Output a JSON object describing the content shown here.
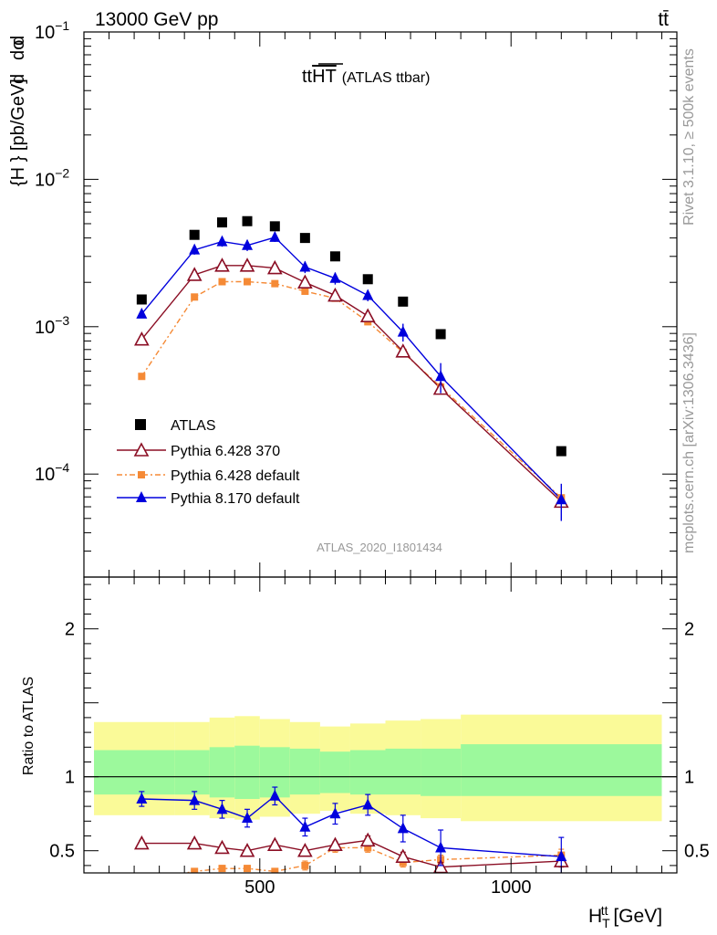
{
  "header": {
    "energy_label": "13000 GeV pp",
    "process_label": "tt̄"
  },
  "side_labels": {
    "rivet": "Rivet 3.1.10, ≥ 500k events",
    "mcplots": "mcplots.cern.ch [arXiv:1306.3436]"
  },
  "plot_title": {
    "main": "tt",
    "overline": "HT",
    "sub": "(ATLAS ttbar)"
  },
  "analysis_id": "ATLAS_2020_I1801434",
  "legend": {
    "data": "ATLAS",
    "p6_370": "Pythia 6.428 370",
    "p6_default": "Pythia 6.428 default",
    "p8_default": "Pythia 8.170 default"
  },
  "colors": {
    "data": "#000000",
    "p6_370": "#8b0e24",
    "p6_default": "#f58a36",
    "p8_default": "#0000dd",
    "band_inner": "#9cf99c",
    "band_outer": "#fafa98"
  },
  "chart_data": [
    {
      "type": "scatter",
      "title": "",
      "ylabel": "dσ^{fid} / d{H_T^{tt}} [pb/GeV]",
      "yscale": "log",
      "xlim": [
        150,
        1330
      ],
      "ylim": [
        2e-05,
        0.1
      ],
      "y_ticks": [
        {
          "v": 0.1,
          "m": "10",
          "e": "−1"
        },
        {
          "v": 0.01,
          "m": "10",
          "e": "−2"
        },
        {
          "v": 0.001,
          "m": "10",
          "e": "−3"
        },
        {
          "v": 0.0001,
          "m": "10",
          "e": "−4"
        }
      ],
      "x": [
        265,
        370,
        425,
        475,
        530,
        590,
        650,
        715,
        785,
        860,
        1100
      ],
      "series": [
        {
          "name": "ATLAS",
          "values": [
            0.00153,
            0.0042,
            0.0051,
            0.0052,
            0.0048,
            0.004,
            0.003,
            0.0021,
            0.00148,
            0.00089,
            0.000143
          ]
        },
        {
          "name": "Pythia 6.428 370",
          "values": [
            0.00082,
            0.00225,
            0.0026,
            0.0026,
            0.0025,
            0.002,
            0.00163,
            0.00118,
            0.00068,
            0.00038,
            6.5e-05
          ]
        },
        {
          "name": "Pythia 6.428 default",
          "values": [
            0.00046,
            0.00159,
            0.00202,
            0.00202,
            0.00196,
            0.00174,
            0.00156,
            0.00108,
            0.00067,
            0.00039,
            6.9e-05
          ]
        },
        {
          "name": "Pythia 8.170 default",
          "values": [
            0.00122,
            0.00332,
            0.00378,
            0.00356,
            0.00404,
            0.00254,
            0.00213,
            0.00163,
            0.00092,
            0.00046,
            6.7e-05
          ]
        }
      ]
    },
    {
      "type": "line",
      "title": "",
      "ylabel": "Ratio to ATLAS",
      "xlabel": "H_T^{tt} [GeV]",
      "xlim": [
        150,
        1330
      ],
      "ylim": [
        0.35,
        2.35
      ],
      "x_ticks": [
        500,
        1000
      ],
      "y_ticks": [
        0.5,
        1,
        2
      ],
      "x": [
        265,
        370,
        425,
        475,
        530,
        590,
        650,
        715,
        785,
        860,
        1100
      ],
      "band_edges": [
        170,
        330,
        400,
        450,
        500,
        560,
        620,
        680,
        750,
        820,
        900,
        1300
      ],
      "band_inner": [
        [
          0.88,
          1.18
        ],
        [
          0.88,
          1.18
        ],
        [
          0.86,
          1.2
        ],
        [
          0.85,
          1.21
        ],
        [
          0.86,
          1.2
        ],
        [
          0.88,
          1.19
        ],
        [
          0.89,
          1.17
        ],
        [
          0.88,
          1.18
        ],
        [
          0.88,
          1.19
        ],
        [
          0.87,
          1.19
        ],
        [
          0.87,
          1.22
        ]
      ],
      "band_outer": [
        [
          0.74,
          1.37
        ],
        [
          0.74,
          1.37
        ],
        [
          0.72,
          1.4
        ],
        [
          0.71,
          1.41
        ],
        [
          0.73,
          1.39
        ],
        [
          0.75,
          1.37
        ],
        [
          0.77,
          1.34
        ],
        [
          0.75,
          1.36
        ],
        [
          0.74,
          1.38
        ],
        [
          0.72,
          1.39
        ],
        [
          0.7,
          1.42
        ]
      ],
      "series": [
        {
          "name": "Pythia 6.428 370",
          "values": [
            0.55,
            0.55,
            0.52,
            0.5,
            0.54,
            0.5,
            0.54,
            0.57,
            0.46,
            0.39,
            0.43
          ],
          "errors": [
            0.02,
            0.02,
            0.02,
            0.02,
            0.02,
            0.02,
            0.02,
            0.03,
            0.03,
            0.03,
            0.04
          ]
        },
        {
          "name": "Pythia 6.428 default",
          "values": [
            0.3,
            0.36,
            0.38,
            0.38,
            0.36,
            0.4,
            0.52,
            0.52,
            0.42,
            0.44,
            0.47
          ],
          "errors": [
            0.02,
            0.02,
            0.02,
            0.02,
            0.02,
            0.03,
            0.03,
            0.03,
            0.03,
            0.03,
            0.04
          ]
        },
        {
          "name": "Pythia 8.170 default",
          "values": [
            0.85,
            0.84,
            0.78,
            0.72,
            0.87,
            0.66,
            0.75,
            0.81,
            0.65,
            0.52,
            0.46
          ],
          "errors": [
            0.05,
            0.06,
            0.06,
            0.06,
            0.06,
            0.06,
            0.07,
            0.07,
            0.09,
            0.12,
            0.13
          ]
        }
      ]
    }
  ]
}
